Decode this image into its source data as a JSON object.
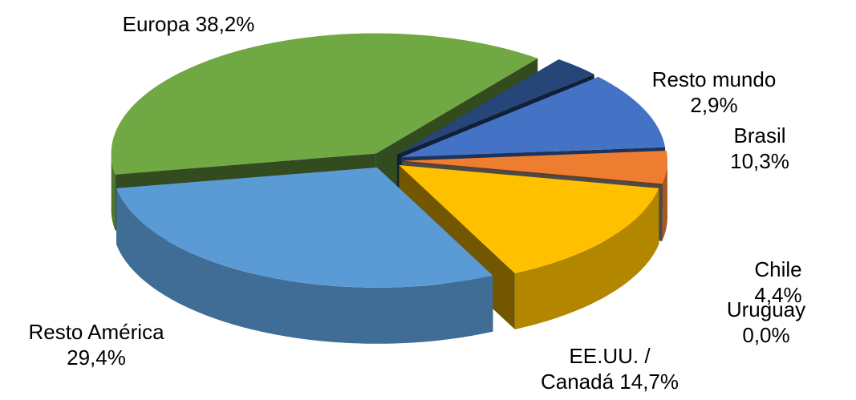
{
  "chart_data": {
    "type": "pie",
    "values": [
      38.2,
      2.9,
      10.3,
      4.4,
      0.0,
      14.7,
      29.4
    ],
    "value_labels": [
      "Europa 38,2%",
      "Resto mundo\n2,9%",
      "Brasil 10,3%",
      "Chile 4,4%",
      "Uruguay 0,0%",
      "EE.UU. /\nCanadá 14,7%",
      "Resto América\n29,4%"
    ],
    "colors": [
      "#70a844",
      "#26467a",
      "#4472c4",
      "#ed7d31",
      "#a5a5a5",
      "#ffc000",
      "#5b9bd5"
    ]
  }
}
